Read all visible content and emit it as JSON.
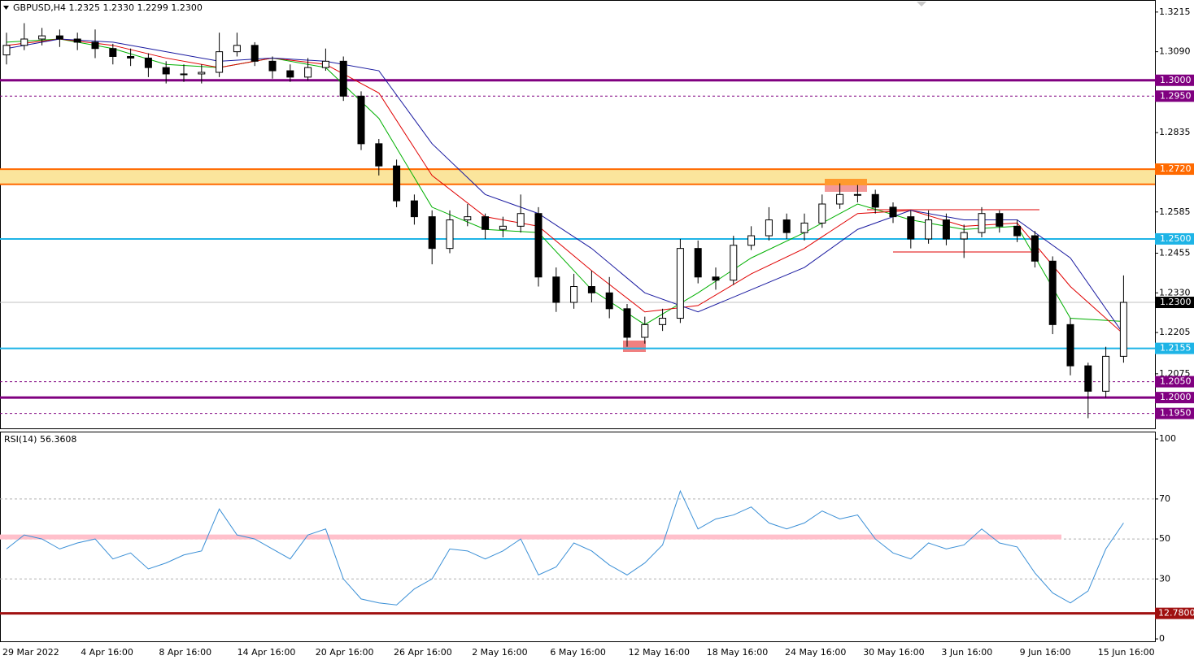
{
  "chart_data": [
    {
      "type": "candlestick",
      "title": "GBPUSD,H4  1.2325 1.2330 1.2299 1.2300",
      "ylim": [
        1.1903,
        1.3253
      ],
      "yticks": [
        1.3215,
        {
          "value": 1.309,
          "label": "1.3090"
        },
        1.2835,
        1.2585,
        1.2455,
        {
          "value": 1.233,
          "label": "1.2330"
        },
        1.2205,
        1.2075
      ],
      "time_labels": [
        "29 Mar 2022",
        "4 Apr 16:00",
        "8 Apr 16:00",
        "14 Apr 16:00",
        "20 Apr 16:00",
        "26 Apr 16:00",
        "2 May 16:00",
        "6 May 16:00",
        "12 May 16:00",
        "18 May 16:00",
        "24 May 16:00",
        "30 May 16:00",
        "3 Jun 16:00",
        "9 Jun 16:00",
        "15 Jun 16:00"
      ],
      "open": [
        1.308,
        1.311,
        1.313,
        1.314,
        1.313,
        1.312,
        1.31,
        1.3075,
        1.307,
        1.304,
        1.302,
        1.302,
        1.3025,
        1.309,
        1.311,
        1.306,
        1.303,
        1.301,
        1.304,
        1.306,
        1.295,
        1.28,
        1.273,
        1.262,
        1.257,
        1.247,
        1.256,
        1.257,
        1.253,
        1.254,
        1.258,
        1.238,
        1.23,
        1.235,
        1.233,
        1.228,
        1.219,
        1.223,
        1.225,
        1.247,
        1.238,
        1.237,
        1.248,
        1.251,
        1.256,
        1.252,
        1.255,
        1.261,
        1.264,
        1.264,
        1.26,
        1.257,
        1.25,
        1.256,
        1.25,
        1.252,
        1.258,
        1.254,
        1.251,
        1.243,
        1.223,
        1.21,
        1.202,
        1.213
      ],
      "high": [
        1.315,
        1.318,
        1.3165,
        1.316,
        1.315,
        1.316,
        1.3115,
        1.31,
        1.3085,
        1.306,
        1.305,
        1.305,
        1.315,
        1.315,
        1.312,
        1.3075,
        1.305,
        1.307,
        1.31,
        1.3075,
        1.2965,
        1.2815,
        1.275,
        1.264,
        1.259,
        1.259,
        1.261,
        1.258,
        1.257,
        1.264,
        1.26,
        1.241,
        1.239,
        1.24,
        1.238,
        1.2295,
        1.2255,
        1.228,
        1.25,
        1.2495,
        1.241,
        1.251,
        1.254,
        1.26,
        1.258,
        1.258,
        1.264,
        1.2675,
        1.267,
        1.2655,
        1.2615,
        1.259,
        1.259,
        1.258,
        1.2545,
        1.26,
        1.259,
        1.256,
        1.2525,
        1.2445,
        1.225,
        1.211,
        1.216,
        1.2385
      ],
      "low": [
        1.305,
        1.3095,
        1.311,
        1.3105,
        1.3095,
        1.307,
        1.305,
        1.3045,
        1.301,
        1.299,
        1.2995,
        1.299,
        1.301,
        1.3075,
        1.3045,
        1.3005,
        1.2995,
        1.3,
        1.303,
        1.2935,
        1.278,
        1.27,
        1.26,
        1.2545,
        1.242,
        1.2455,
        1.254,
        1.25,
        1.2505,
        1.252,
        1.235,
        1.227,
        1.228,
        1.23,
        1.225,
        1.216,
        1.217,
        1.221,
        1.2235,
        1.236,
        1.234,
        1.2355,
        1.2465,
        1.2495,
        1.25,
        1.2495,
        1.2535,
        1.2595,
        1.2615,
        1.258,
        1.255,
        1.247,
        1.2485,
        1.248,
        1.244,
        1.2505,
        1.252,
        1.249,
        1.241,
        1.22,
        1.207,
        1.1935,
        1.2,
        1.211
      ],
      "close": [
        1.311,
        1.313,
        1.314,
        1.313,
        1.312,
        1.31,
        1.3075,
        1.307,
        1.304,
        1.302,
        1.302,
        1.3025,
        1.309,
        1.311,
        1.306,
        1.303,
        1.301,
        1.304,
        1.306,
        1.295,
        1.28,
        1.273,
        1.262,
        1.257,
        1.247,
        1.256,
        1.257,
        1.253,
        1.254,
        1.258,
        1.238,
        1.23,
        1.235,
        1.233,
        1.228,
        1.219,
        1.223,
        1.225,
        1.247,
        1.238,
        1.237,
        1.248,
        1.251,
        1.256,
        1.252,
        1.255,
        1.261,
        1.264,
        1.264,
        1.26,
        1.257,
        1.25,
        1.256,
        1.25,
        1.252,
        1.258,
        1.254,
        1.251,
        1.243,
        1.223,
        1.21,
        1.202,
        1.213,
        1.23
      ],
      "candle_color": "#000000",
      "moving_averages": {
        "x": [
          0,
          3,
          6,
          9,
          12,
          15,
          18,
          21,
          24,
          27,
          30,
          33,
          36,
          39,
          42,
          45,
          48,
          51,
          54,
          57,
          60,
          63
        ],
        "series": [
          {
            "color": "#00b000",
            "values": [
              1.312,
              1.313,
              1.31,
              1.305,
              1.304,
              1.307,
              1.304,
              1.288,
              1.26,
              1.253,
              1.252,
              1.234,
              1.223,
              1.233,
              1.244,
              1.252,
              1.261,
              1.256,
              1.253,
              1.254,
              1.225,
              1.224
            ]
          },
          {
            "color": "#e00000",
            "values": [
              1.311,
              1.313,
              1.311,
              1.307,
              1.304,
              1.307,
              1.305,
              1.296,
              1.27,
              1.257,
              1.254,
              1.24,
              1.227,
              1.229,
              1.239,
              1.247,
              1.258,
              1.259,
              1.254,
              1.255,
              1.235,
              1.22
            ]
          },
          {
            "color": "#1a1aa0",
            "values": [
              1.31,
              1.313,
              1.312,
              1.309,
              1.306,
              1.307,
              1.306,
              1.303,
              1.28,
              1.264,
              1.258,
              1.247,
              1.233,
              1.227,
              1.234,
              1.241,
              1.253,
              1.259,
              1.256,
              1.256,
              1.244,
              1.22
            ]
          }
        ]
      },
      "zone": {
        "from": 1.2672,
        "to": 1.272,
        "color": "#fbe59c",
        "edge": "#ff6a00",
        "label": "1.2720"
      },
      "levels": [
        {
          "value": 1.3,
          "label": "1.3000",
          "color": "#800080",
          "style": "thick"
        },
        {
          "value": 1.295,
          "label": "1.2950",
          "color": "#800080",
          "style": "dashed"
        },
        {
          "value": 1.25,
          "label": "1.2500",
          "color": "#1eb4e6",
          "style": "solid"
        },
        {
          "value": 1.23,
          "label": "1.2300",
          "color": "#c0c0c0",
          "style": "thin",
          "box": "#000000"
        },
        {
          "value": 1.2155,
          "label": "1.2155",
          "color": "#1eb4e6",
          "style": "solid"
        },
        {
          "value": 1.205,
          "label": "1.2050",
          "color": "#800080",
          "style": "dashed"
        },
        {
          "value": 1.2,
          "label": "1.2000",
          "color": "#800080",
          "style": "thick"
        },
        {
          "value": 1.195,
          "label": "1.1950",
          "color": "#800080",
          "style": "dashed"
        }
      ]
    },
    {
      "type": "line",
      "title": "RSI(14) 56.3608",
      "ylim": [
        -1.6,
        103.7
      ],
      "yticks": [
        100,
        70,
        50,
        30,
        0
      ],
      "grid_levels": [
        70,
        50,
        30
      ],
      "highlight_level": {
        "value": 51,
        "color": "#ffc0cb"
      },
      "low_level": {
        "value": 12.78,
        "label": "12.7800",
        "color": "#a01010"
      },
      "color": "#3a8fd6",
      "values": [
        45,
        52,
        50,
        45,
        48,
        50,
        40,
        43,
        35,
        38,
        42,
        44,
        65,
        52,
        50,
        45,
        40,
        52,
        55,
        30,
        20,
        18,
        17,
        25,
        30,
        45,
        44,
        40,
        44,
        50,
        32,
        36,
        48,
        44,
        37,
        32,
        38,
        47,
        74,
        55,
        60,
        62,
        66,
        58,
        55,
        58,
        64,
        60,
        62,
        50,
        43,
        40,
        48,
        45,
        47,
        55,
        48,
        46,
        33,
        23,
        18,
        24,
        45,
        58
      ]
    }
  ]
}
